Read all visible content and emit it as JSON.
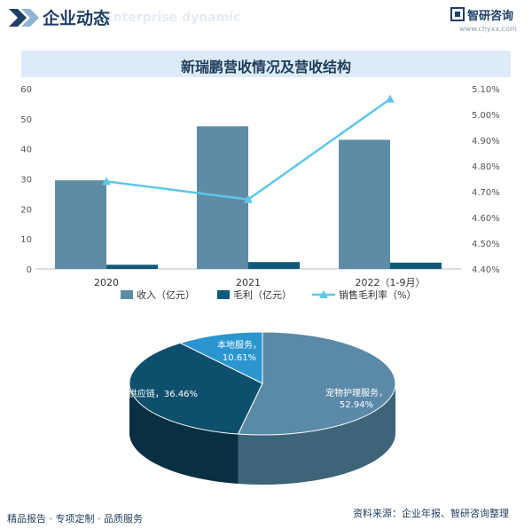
{
  "header": {
    "title": "企业动态",
    "subtitle": "Enterprise dynamic",
    "brand_name": "智研咨询",
    "brand_url": "www.chyxx.com"
  },
  "colors": {
    "revenue": "#5f8ca5",
    "gross_profit": "#0f5a7b",
    "margin": "#5fc6ea",
    "pie_pet_care": "#5b89a8",
    "pie_supply_chain": "#0e4f6c",
    "pie_local_service": "#2b95d0"
  },
  "chart_data": [
    {
      "type": "bar",
      "title": "新瑞鹏营收情况及营收结构",
      "categories": [
        "2020",
        "2021",
        "2022（1-9月）"
      ],
      "series": [
        {
          "name": "收入（亿元）",
          "kind": "bar",
          "axis": "left",
          "values": [
            29.5,
            47.5,
            43
          ]
        },
        {
          "name": "毛利（亿元）",
          "kind": "bar",
          "axis": "left",
          "values": [
            1.4,
            2.3,
            2.1
          ]
        },
        {
          "name": "销售毛利率（%）",
          "kind": "line",
          "axis": "right",
          "values": [
            4.74,
            4.67,
            5.06
          ]
        }
      ],
      "y_left": {
        "min": 0,
        "max": 60,
        "ticks": [
          "0",
          "10",
          "20",
          "30",
          "40",
          "50",
          "60"
        ]
      },
      "y_right": {
        "min": 4.4,
        "max": 5.1,
        "ticks": [
          "4.40%",
          "4.50%",
          "4.60%",
          "4.70%",
          "4.80%",
          "4.90%",
          "5.00%",
          "5.10%"
        ]
      },
      "grid": false,
      "legend_position": "bottom"
    },
    {
      "type": "pie",
      "style": "3d",
      "slices": [
        {
          "label": "宠物护理服务",
          "value": 52.94,
          "text": "宠物护理服务，52.94%"
        },
        {
          "label": "供应链",
          "value": 36.46,
          "text": "供应链，36.46%"
        },
        {
          "label": "本地服务",
          "value": 10.61,
          "line1": "本地服务，",
          "line2": "10.61%"
        }
      ]
    }
  ],
  "footer": {
    "left": "精品报告 · 专项定制 · 品质服务",
    "right": "资料来源：企业年报、智研咨询整理"
  }
}
